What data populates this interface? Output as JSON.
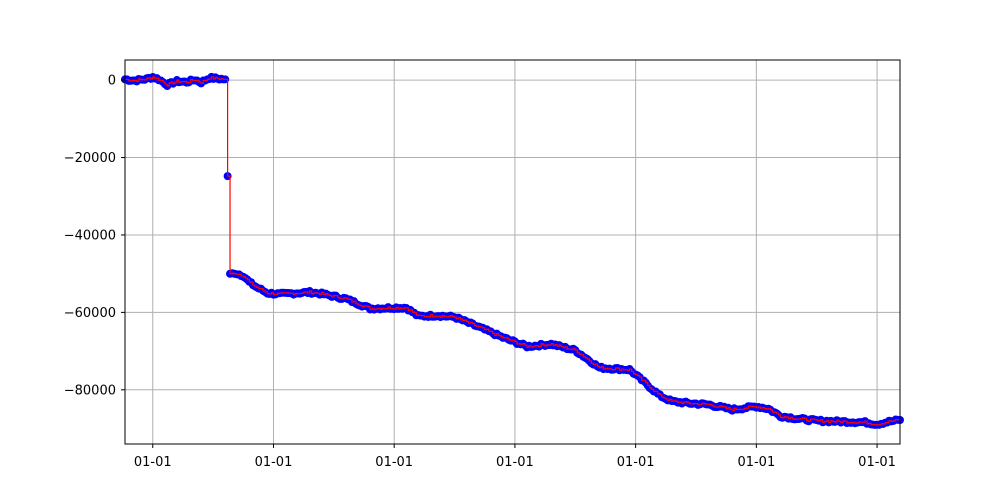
{
  "chart_data": {
    "type": "scatter",
    "title": "",
    "xlabel": "",
    "ylabel": "",
    "grid": true,
    "legend": "none",
    "x_tick_labels": [
      "01-01",
      "01-01",
      "01-01",
      "01-01",
      "01-01",
      "01-01",
      "01-01"
    ],
    "x_ticks": [
      0.5,
      1.5,
      2.5,
      3.5,
      4.5,
      5.5,
      6.5
    ],
    "xlim": [
      0.27,
      6.69
    ],
    "y_tick_labels": [
      "0",
      "−20000",
      "−40000",
      "−60000",
      "−80000"
    ],
    "y_ticks": [
      0,
      -20000,
      -40000,
      -60000,
      -80000
    ],
    "ylim": [
      -94000,
      5200
    ],
    "colors": {
      "markers": "#0000ff",
      "line": "#ff0000"
    },
    "series": [
      {
        "marker": "circle",
        "line": "step",
        "x": [
          0.27,
          0.35,
          0.45,
          0.5,
          0.55,
          0.62,
          0.7,
          0.78,
          0.85,
          0.9,
          0.97,
          1.1,
          1.12,
          1.14,
          1.18,
          1.25,
          1.3,
          1.36,
          1.45,
          1.55,
          1.7,
          1.8,
          1.9,
          2.1,
          2.3,
          2.5,
          2.6,
          2.7,
          2.85,
          3.0,
          3.2,
          3.4,
          3.6,
          3.8,
          4.0,
          4.2,
          4.45,
          4.6,
          4.7,
          4.8,
          4.95,
          5.1,
          5.3,
          5.5,
          5.6,
          5.7,
          5.85,
          6.0,
          6.2,
          6.4,
          6.5,
          6.6,
          6.69
        ],
        "y": [
          200,
          -100,
          300,
          800,
          200,
          -1200,
          -300,
          -500,
          100,
          -600,
          600,
          200,
          -24800,
          -50200,
          -49800,
          -50500,
          -52200,
          -53500,
          -55000,
          -55300,
          -55000,
          -54800,
          -55200,
          -56500,
          -59000,
          -58800,
          -58800,
          -61000,
          -60800,
          -61200,
          -63800,
          -66500,
          -68800,
          -68200,
          -69800,
          -74300,
          -74800,
          -78800,
          -81500,
          -83000,
          -83500,
          -83800,
          -85100,
          -84300,
          -84900,
          -86800,
          -87500,
          -88000,
          -88200,
          -88400,
          -88900,
          -88200,
          -87800
        ]
      }
    ]
  }
}
